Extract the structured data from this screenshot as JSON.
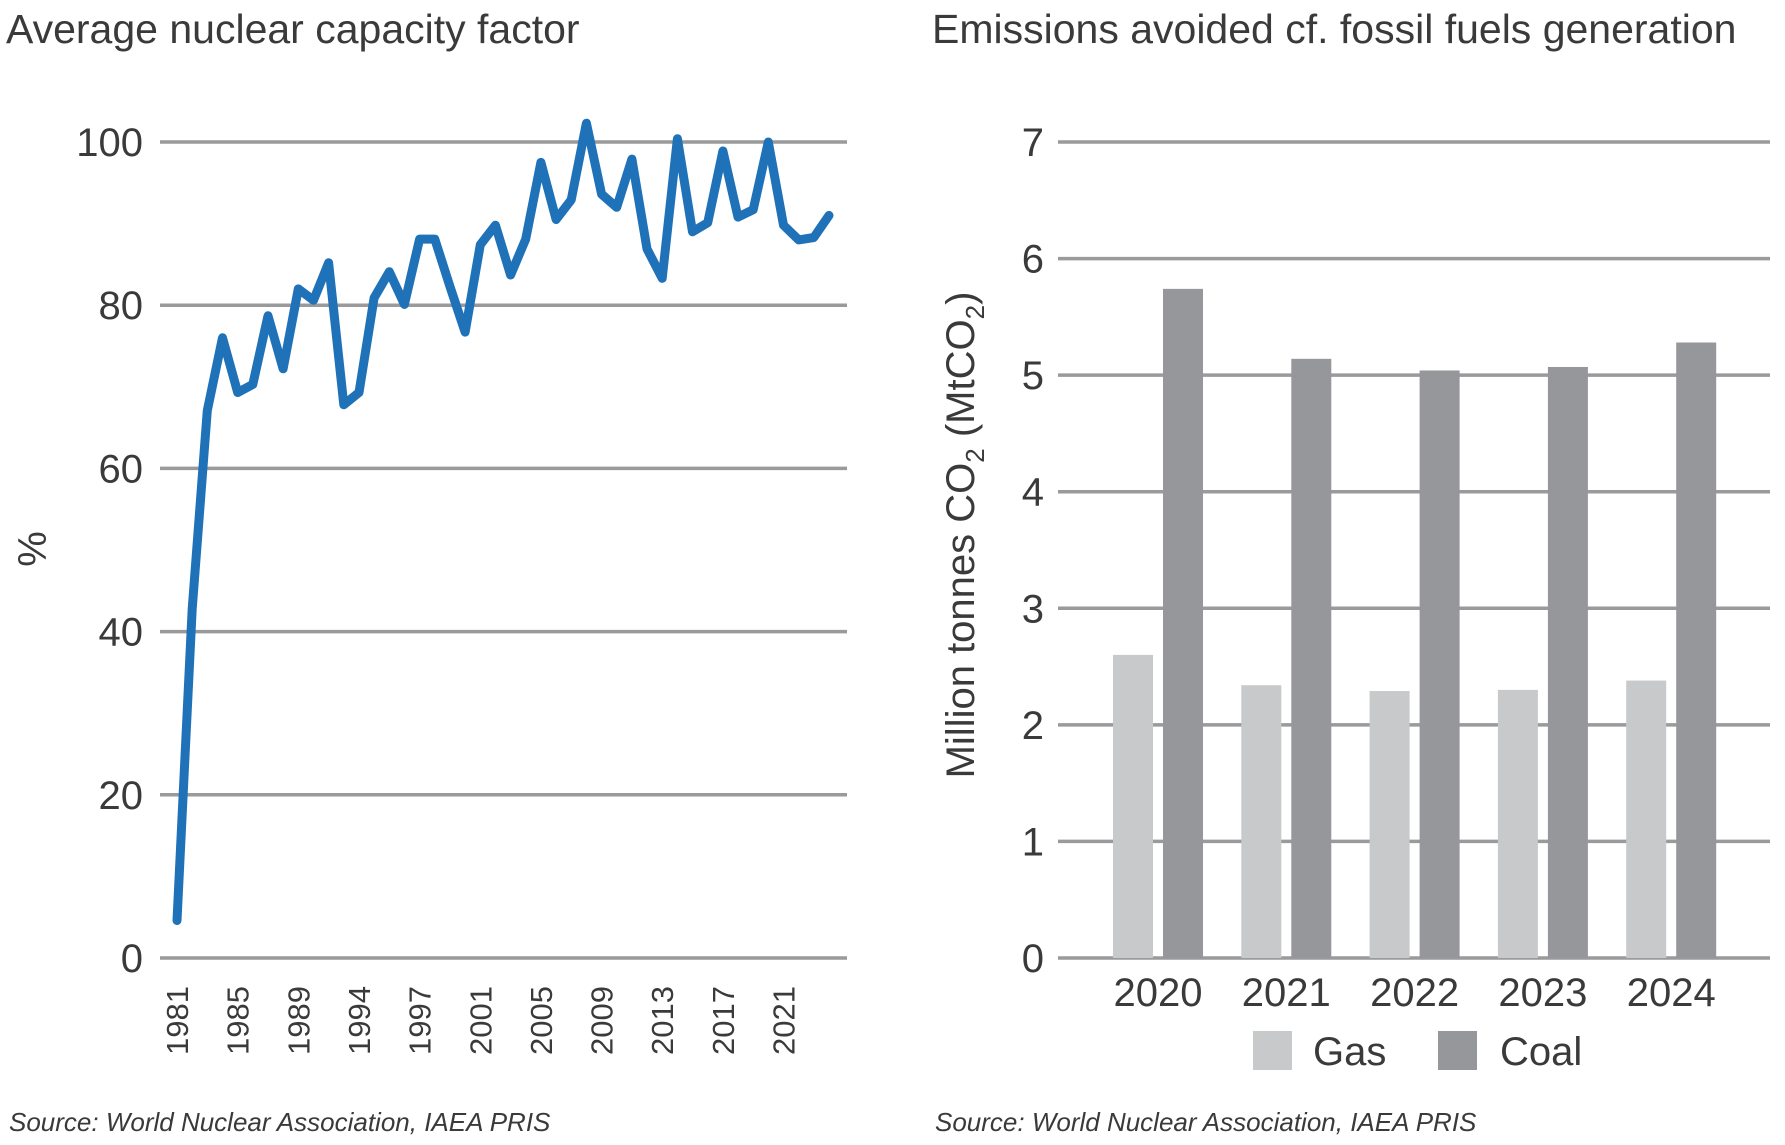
{
  "chart_data": [
    {
      "type": "line",
      "title": "Average nuclear capacity factor",
      "ylabel": "%",
      "xlabel": "",
      "ylim": [
        0,
        100
      ],
      "yticks": [
        "0",
        "20",
        "40",
        "60",
        "80",
        "100"
      ],
      "xtick_labels": [
        "1981",
        "1985",
        "1989",
        "1994",
        "1997",
        "2001",
        "2005",
        "2009",
        "2013",
        "2017",
        "2021"
      ],
      "grid": true,
      "color": "#1f72b8",
      "x": [
        1981,
        1982,
        1983,
        1984,
        1985,
        1986,
        1987,
        1988,
        1989,
        1990,
        1991,
        1992,
        1993,
        1994,
        1995,
        1996,
        1997,
        1998,
        1999,
        2000,
        2001,
        2002,
        2003,
        2004,
        2005,
        2006,
        2007,
        2008,
        2009,
        2010,
        2011,
        2012,
        2013,
        2014,
        2015,
        2016,
        2017,
        2018,
        2019,
        2020,
        2021,
        2022,
        2023,
        2024
      ],
      "values": [
        4.6,
        42.8,
        67.1,
        76.0,
        69.3,
        70.3,
        78.7,
        72.2,
        82.0,
        80.6,
        85.2,
        67.8,
        69.3,
        80.9,
        84.1,
        80.1,
        88.1,
        88.1,
        82.3,
        76.7,
        87.4,
        89.8,
        83.7,
        88.1,
        97.5,
        90.5,
        92.9,
        102.3,
        93.6,
        92.0,
        97.9,
        86.9,
        83.3,
        100.4,
        89.0,
        90.1,
        98.9,
        90.8,
        91.7,
        100.0,
        89.8,
        88.0,
        88.3,
        91.0
      ],
      "source": "Source: World Nuclear Association, IAEA PRIS"
    },
    {
      "type": "bar",
      "title": "Emissions avoided cf. fossil fuels generation",
      "ylabel_parts": [
        "Million tonnes CO",
        "2",
        " (MtCO",
        "2",
        ")"
      ],
      "ylim": [
        0,
        7
      ],
      "yticks": [
        "0",
        "1",
        "2",
        "3",
        "4",
        "5",
        "6",
        "7"
      ],
      "grid": true,
      "categories": [
        "2020",
        "2021",
        "2022",
        "2023",
        "2024"
      ],
      "series": [
        {
          "name": "Gas",
          "color": "#c8c9ca",
          "values": [
            2.6,
            2.34,
            2.29,
            2.3,
            2.38
          ]
        },
        {
          "name": "Coal",
          "color": "#96979b",
          "values": [
            5.74,
            5.14,
            5.04,
            5.07,
            5.28
          ]
        }
      ],
      "legend": "bottom",
      "source": "Source: World Nuclear Association, IAEA PRIS"
    }
  ]
}
